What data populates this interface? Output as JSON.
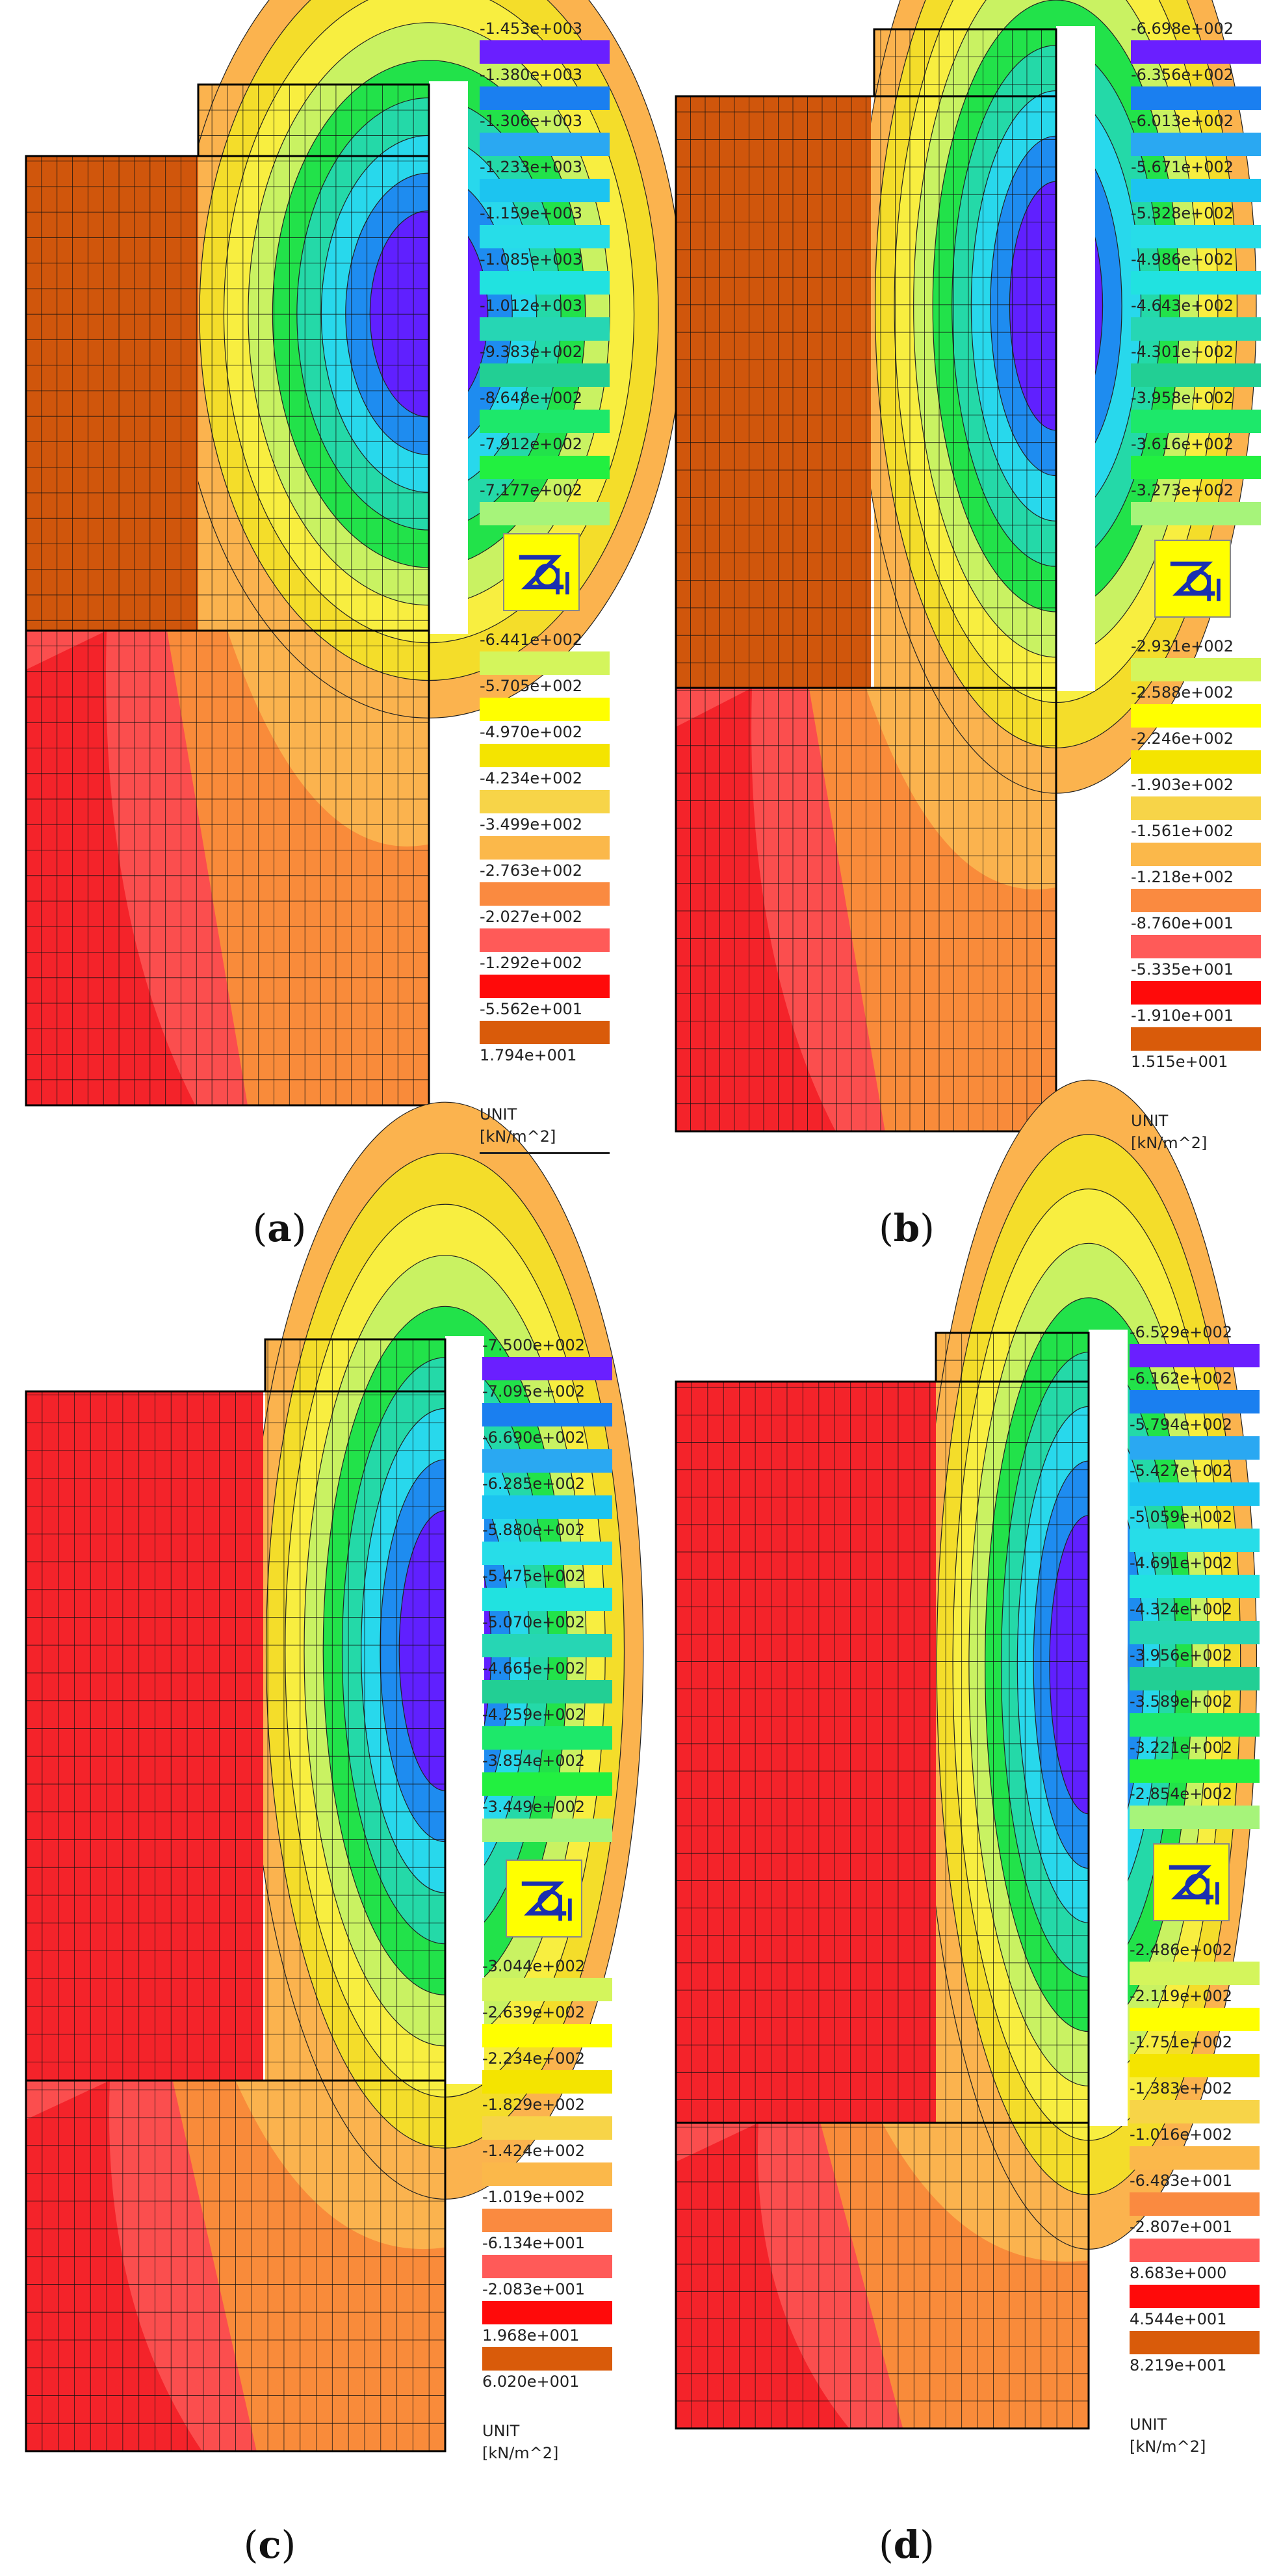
{
  "panels": [
    {
      "id": "a",
      "caption": "a",
      "legend_upper": [
        "-1.453e+003",
        "-1.380e+003",
        "-1.306e+003",
        "-1.233e+003",
        "-1.159e+003",
        "-1.085e+003",
        "-1.012e+003",
        "-9.383e+002",
        "-8.648e+002",
        "-7.912e+002",
        "-7.177e+002"
      ],
      "legend_lower": [
        "-6.441e+002",
        "-5.705e+002",
        "-4.970e+002",
        "-4.234e+002",
        "-3.499e+002",
        "-2.763e+002",
        "-2.027e+002",
        "-1.292e+002",
        "-5.562e+001",
        "1.794e+001"
      ],
      "unit_title": "UNIT",
      "unit_value": "[kN/m^2]"
    },
    {
      "id": "b",
      "caption": "b",
      "legend_upper": [
        "-6.698e+002",
        "-6.356e+002",
        "-6.013e+002",
        "-5.671e+002",
        "-5.328e+002",
        "-4.986e+002",
        "-4.643e+002",
        "-4.301e+002",
        "-3.958e+002",
        "-3.616e+002",
        "-3.273e+002"
      ],
      "legend_lower": [
        "-2.931e+002",
        "-2.588e+002",
        "-2.246e+002",
        "-1.903e+002",
        "-1.561e+002",
        "-1.218e+002",
        "-8.760e+001",
        "-5.335e+001",
        "-1.910e+001",
        "1.515e+001"
      ],
      "unit_title": "UNIT",
      "unit_value": "[kN/m^2]"
    },
    {
      "id": "c",
      "caption": "c",
      "legend_upper": [
        "-7.500e+002",
        "-7.095e+002",
        "-6.690e+002",
        "-6.285e+002",
        "-5.880e+002",
        "-5.475e+002",
        "-5.070e+002",
        "-4.665e+002",
        "-4.259e+002",
        "-3.854e+002",
        "-3.449e+002"
      ],
      "legend_lower": [
        "-3.044e+002",
        "-2.639e+002",
        "-2.234e+002",
        "-1.829e+002",
        "-1.424e+002",
        "-1.019e+002",
        "-6.134e+001",
        "-2.083e+001",
        "1.968e+001",
        "6.020e+001"
      ],
      "unit_title": "UNIT",
      "unit_value": "[kN/m^2]"
    },
    {
      "id": "d",
      "caption": "d",
      "legend_upper": [
        "-6.529e+002",
        "-6.162e+002",
        "-5.794e+002",
        "-5.427e+002",
        "-5.059e+002",
        "-4.691e+002",
        "-4.324e+002",
        "-3.956e+002",
        "-3.589e+002",
        "-3.221e+002",
        "-2.854e+002"
      ],
      "legend_lower": [
        "-2.486e+002",
        "-2.119e+002",
        "-1.751e+002",
        "-1.383e+002",
        "-1.016e+002",
        "-6.483e+001",
        "-2.807e+001",
        "8.683e+000",
        "4.544e+001",
        "8.219e+001"
      ],
      "unit_title": "UNIT",
      "unit_value": "[kN/m^2]"
    }
  ],
  "legend_colors_upper": [
    "#6a1fff",
    "#1a7ff0",
    "#2aa8f2",
    "#1cc4f0",
    "#27dde8",
    "#21e2e0",
    "#26d6b4",
    "#22cf94",
    "#1de86a",
    "#22f040",
    "#a6f47a"
  ],
  "legend_colors_lower": [
    "#d4f55c",
    "#ffff00",
    "#f4e400",
    "#f7d448",
    "#fbb84a",
    "#fa8a40",
    "#ff5a58",
    "#ff0a0a",
    "#d95b0a"
  ],
  "colors": {
    "brown": "#d0560c",
    "red": "#f4232a",
    "salmon": "#fb4e4e",
    "orange": "#f98b3a",
    "light_orange": "#fbb34e",
    "yellow": "#f4dd2a",
    "light_yellow": "#f8ee40",
    "lime": "#c9f262",
    "green": "#22e24a",
    "teal": "#24d9a8",
    "cyan": "#28d8ec",
    "blue": "#1e8cf0",
    "purple": "#6020ff",
    "grid": "#111111"
  }
}
